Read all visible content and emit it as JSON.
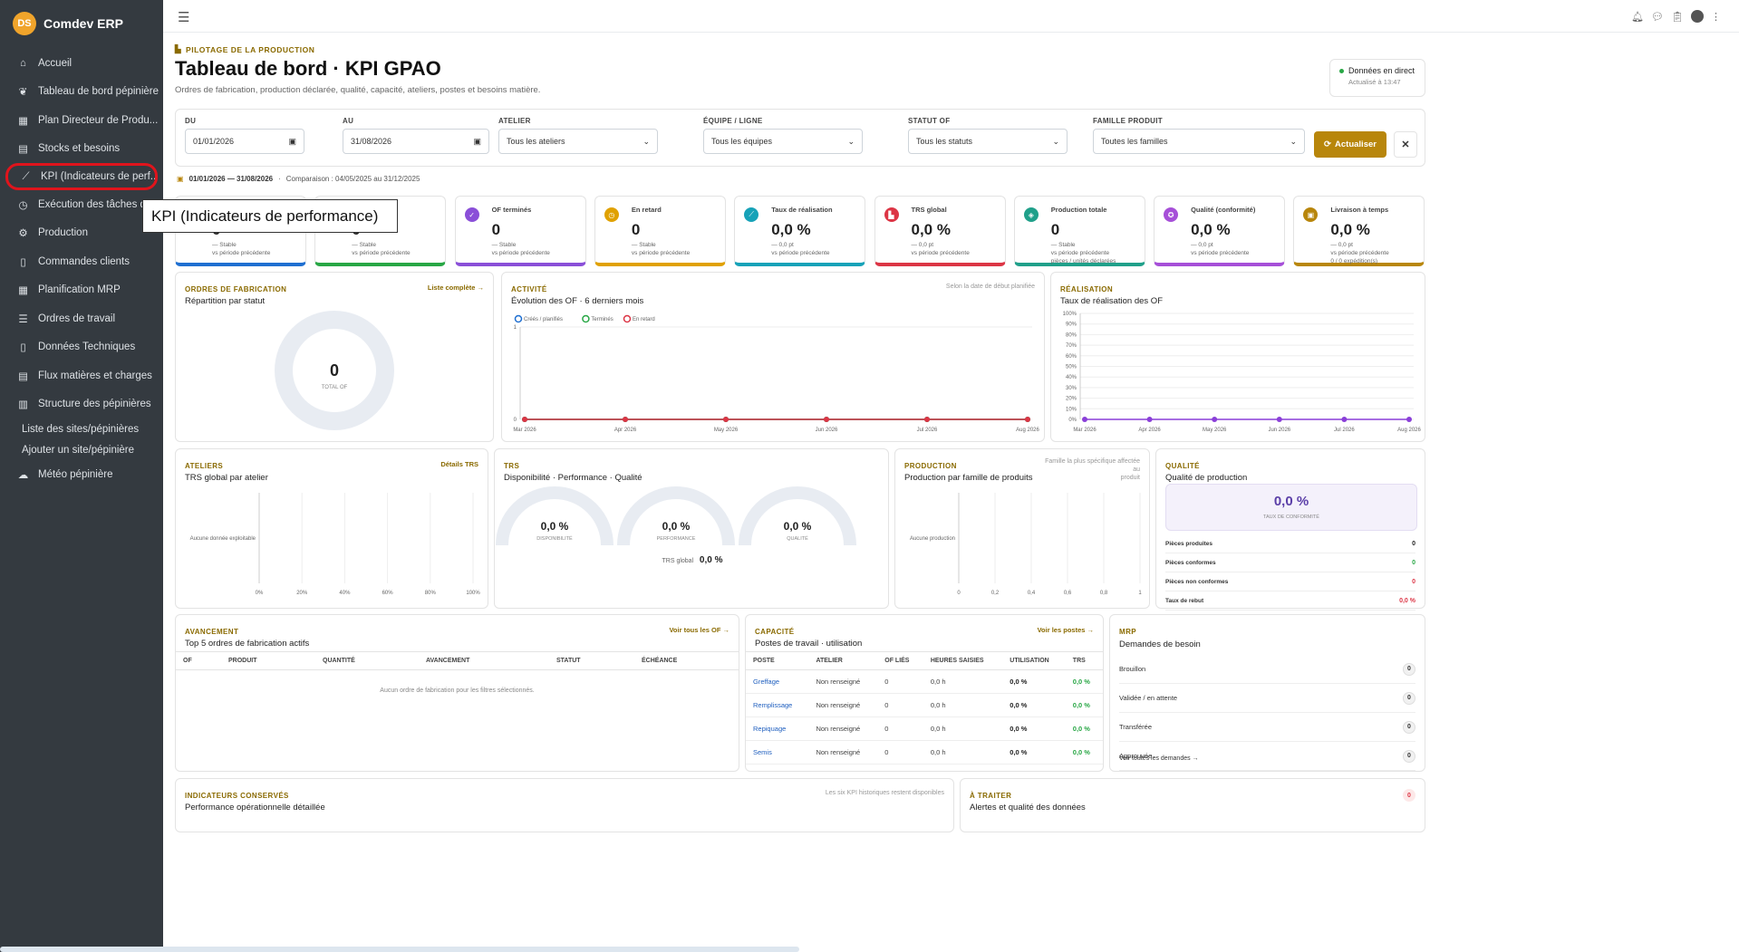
{
  "app": {
    "brand": "Comdev ERP",
    "logo_text": "DS"
  },
  "sidebar": {
    "items": [
      {
        "label": "Accueil",
        "icon": "home-icon"
      },
      {
        "label": "Tableau de bord pépinière",
        "icon": "leaf-icon"
      },
      {
        "label": "Plan Directeur de Produ...",
        "icon": "calendar-icon"
      },
      {
        "label": "Stocks et besoins",
        "icon": "boxes-icon"
      },
      {
        "label": "KPI (Indicateurs de perf...",
        "icon": "chart-line-icon"
      },
      {
        "label": "Exécution des tâches d'...",
        "icon": "clock-icon"
      },
      {
        "label": "Production",
        "icon": "cogs-icon"
      },
      {
        "label": "Commandes clients",
        "icon": "file-icon"
      },
      {
        "label": "Planification MRP",
        "icon": "calendar-icon"
      },
      {
        "label": "Ordres de travail",
        "icon": "tasks-icon"
      },
      {
        "label": "Données Techniques",
        "icon": "file-icon"
      },
      {
        "label": "Flux matières et charges",
        "icon": "boxes-icon"
      },
      {
        "label": "Structure des pépinières",
        "icon": "building-icon"
      }
    ],
    "subitems": [
      "Liste des sites/pépinières",
      "Ajouter un site/pépinière"
    ],
    "last_item": {
      "label": "Météo pépinière",
      "icon": "cloud-icon"
    }
  },
  "tooltip": "KPI (Indicateurs de performance)",
  "header": {
    "eyebrow": "PILOTAGE DE LA PRODUCTION",
    "title": "Tableau de bord · KPI GPAO",
    "subtitle": "Ordres de fabrication, production déclarée, qualité, capacité, ateliers, postes et besoins matière.",
    "live_title": "Données en direct",
    "live_sub": "Actualisé à 13:47"
  },
  "filters": {
    "du_label": "DU",
    "du_value": "01/01/2026",
    "au_label": "AU",
    "au_value": "31/08/2026",
    "atelier_label": "ATELIER",
    "atelier_value": "Tous les ateliers",
    "equipe_label": "ÉQUIPE / LIGNE",
    "equipe_value": "Tous les équipes",
    "statut_label": "STATUT OF",
    "statut_value": "Tous les statuts",
    "famille_label": "FAMILLE PRODUIT",
    "famille_value": "Toutes les familles",
    "refresh_label": "Actualiser",
    "clear_label": "✕"
  },
  "period": {
    "range": "01/01/2026 — 31/08/2026",
    "comparison": "Comparaison : 04/05/2025 au 31/12/2025"
  },
  "kpis": [
    {
      "label": "",
      "value": "0",
      "d1": "— Stable",
      "d2": "vs période précédente",
      "d3": "",
      "color": "#1f6fd1"
    },
    {
      "label": "",
      "value": "0",
      "d1": "— Stable",
      "d2": "vs période précédente",
      "d3": "",
      "color": "#28a745"
    },
    {
      "label": "OF terminés",
      "value": "0",
      "d1": "— Stable",
      "d2": "vs période précédente",
      "d3": "",
      "color": "#8a4fd8",
      "icon": "check-icon"
    },
    {
      "label": "En retard",
      "value": "0",
      "d1": "— Stable",
      "d2": "vs période précédente",
      "d3": "",
      "color": "#e0a100",
      "icon": "clock-icon"
    },
    {
      "label": "Taux de réalisation",
      "value": "0,0 %",
      "d1": "— 0,0 pt",
      "d2": "vs période précédente",
      "d3": "",
      "color": "#17a2b8",
      "icon": "chart-icon"
    },
    {
      "label": "TRS global",
      "value": "0,0 %",
      "d1": "— 0,0 pt",
      "d2": "vs période précédente",
      "d3": "",
      "color": "#dc3545",
      "icon": "factory-icon"
    },
    {
      "label": "Production totale",
      "value": "0",
      "d1": "— Stable",
      "d2": "vs période précédente",
      "d3": "pièces / unités déclarées",
      "color": "#20a08a",
      "icon": "cubes-icon"
    },
    {
      "label": "Qualité (conformité)",
      "value": "0,0 %",
      "d1": "— 0,0 pt",
      "d2": "vs période précédente",
      "d3": "",
      "color": "#a64fd8",
      "icon": "award-icon"
    },
    {
      "label": "Livraison à temps",
      "value": "0,0 %",
      "d1": "— 0,0 pt",
      "d2": "vs période précédente",
      "d3": "0 / 0 expédition(s)",
      "color": "#b8860b",
      "icon": "truck-icon"
    }
  ],
  "of_panel": {
    "eyebrow": "ORDRES DE FABRICATION",
    "title": "Répartition par statut",
    "link": "Liste complète →",
    "total": "0",
    "total_label": "TOTAL OF"
  },
  "activity": {
    "eyebrow": "ACTIVITÉ",
    "title": "Évolution des OF · 6 derniers mois",
    "note": "Selon la date de début planifiée",
    "legend": [
      "Créés / planifiés",
      "Terminés",
      "En retard"
    ]
  },
  "realisation": {
    "eyebrow": "RÉALISATION",
    "title": "Taux de réalisation des OF"
  },
  "ateliers": {
    "eyebrow": "ATELIERS",
    "title": "TRS global par atelier",
    "link": "Détails TRS",
    "empty": "Aucune donnée exploitable"
  },
  "trs": {
    "eyebrow": "TRS",
    "title": "Disponibilité · Performance · Qualité",
    "gauges": [
      {
        "value": "0,0 %",
        "label": "DISPONIBILITÉ"
      },
      {
        "value": "0,0 %",
        "label": "PERFORMANCE"
      },
      {
        "value": "0,0 %",
        "label": "QUALITÉ"
      }
    ],
    "global_label": "TRS global",
    "global_value": "0,0 %"
  },
  "production": {
    "eyebrow": "PRODUCTION",
    "title": "Production par famille de produits",
    "note1": "Famille la plus spécifique affectée au",
    "note2": "produit",
    "empty": "Aucune production"
  },
  "qualite": {
    "eyebrow": "QUALITÉ",
    "title": "Qualité de production",
    "value": "0,0 %",
    "value_label": "TAUX DE CONFORMITÉ",
    "rows": [
      {
        "label": "Pièces produites",
        "value": "0",
        "color": "#222"
      },
      {
        "label": "Pièces conformes",
        "value": "0",
        "color": "#28a745"
      },
      {
        "label": "Pièces non conformes",
        "value": "0",
        "color": "#dc3545"
      },
      {
        "label": "Taux de rebut",
        "value": "0,0 %",
        "color": "#dc3545"
      }
    ]
  },
  "avancement": {
    "eyebrow": "AVANCEMENT",
    "title": "Top 5 ordres de fabrication actifs",
    "link": "Voir tous les OF →",
    "columns": [
      "OF",
      "PRODUIT",
      "QUANTITÉ",
      "AVANCEMENT",
      "STATUT",
      "ÉCHÉANCE"
    ],
    "empty": "Aucun ordre de fabrication pour les filtres sélectionnés."
  },
  "capacite": {
    "eyebrow": "CAPACITÉ",
    "title": "Postes de travail · utilisation",
    "link": "Voir les postes →",
    "columns": [
      "POSTE",
      "ATELIER",
      "OF LIÉS",
      "HEURES SAISIES",
      "UTILISATION",
      "TRS"
    ],
    "rows": [
      {
        "poste": "Greffage",
        "atelier": "Non renseigné",
        "of": "0",
        "heures": "0,0 h",
        "util": "0,0 %",
        "trs": "0,0 %"
      },
      {
        "poste": "Remplissage",
        "atelier": "Non renseigné",
        "of": "0",
        "heures": "0,0 h",
        "util": "0,0 %",
        "trs": "0,0 %"
      },
      {
        "poste": "Repiquage",
        "atelier": "Non renseigné",
        "of": "0",
        "heures": "0,0 h",
        "util": "0,0 %",
        "trs": "0,0 %"
      },
      {
        "poste": "Semis",
        "atelier": "Non renseigné",
        "of": "0",
        "heures": "0,0 h",
        "util": "0,0 %",
        "trs": "0,0 %"
      }
    ]
  },
  "mrp": {
    "eyebrow": "MRP",
    "title": "Demandes de besoin",
    "rows": [
      {
        "label": "Brouillon",
        "value": "0"
      },
      {
        "label": "Validée / en attente",
        "value": "0"
      },
      {
        "label": "Transférée",
        "value": "0"
      },
      {
        "label": "Approuvée",
        "value": "0"
      }
    ],
    "link": "Voir toutes les demandes →"
  },
  "indicateurs": {
    "eyebrow": "INDICATEURS CONSERVÉS",
    "title": "Performance opérationnelle détaillée",
    "note": "Les six KPI historiques restent disponibles"
  },
  "atraiter": {
    "eyebrow": "À TRAITER",
    "title": "Alertes et qualité des données",
    "count": "0"
  },
  "chart_data": [
    {
      "type": "line",
      "title": "Évolution des OF · 6 derniers mois",
      "categories": [
        "Mar 2026",
        "Apr 2026",
        "May 2026",
        "Jun 2026",
        "Jul 2026",
        "Aug 2026"
      ],
      "series": [
        {
          "name": "Créés / planifiés",
          "values": [
            0,
            0,
            0,
            0,
            0,
            0
          ]
        },
        {
          "name": "Terminés",
          "values": [
            0,
            0,
            0,
            0,
            0,
            0
          ]
        },
        {
          "name": "En retard",
          "values": [
            0,
            0,
            0,
            0,
            0,
            0
          ]
        }
      ],
      "ylim": [
        0,
        1
      ],
      "yticks": [
        "0",
        "1"
      ]
    },
    {
      "type": "line",
      "title": "Taux de réalisation des OF",
      "categories": [
        "Mar 2026",
        "Apr 2026",
        "May 2026",
        "Jun 2026",
        "Jul 2026",
        "Aug 2026"
      ],
      "series": [
        {
          "values": [
            0,
            0,
            0,
            0,
            0,
            0
          ]
        }
      ],
      "ylim": [
        0,
        100
      ],
      "yticks": [
        "0%",
        "10%",
        "20%",
        "30%",
        "40%",
        "50%",
        "60%",
        "70%",
        "80%",
        "90%",
        "100%"
      ]
    },
    {
      "type": "bar",
      "title": "TRS global par atelier",
      "xticks": [
        "0%",
        "20%",
        "40%",
        "60%",
        "80%",
        "100%"
      ],
      "categories": [
        "Aucune donnée exploitable"
      ],
      "values": [
        0
      ]
    },
    {
      "type": "bar",
      "title": "Production par famille de produits",
      "xticks": [
        "0",
        "0,2",
        "0,4",
        "0,6",
        "0,8",
        "1"
      ],
      "categories": [
        "Aucune production"
      ],
      "values": [
        0
      ]
    }
  ]
}
